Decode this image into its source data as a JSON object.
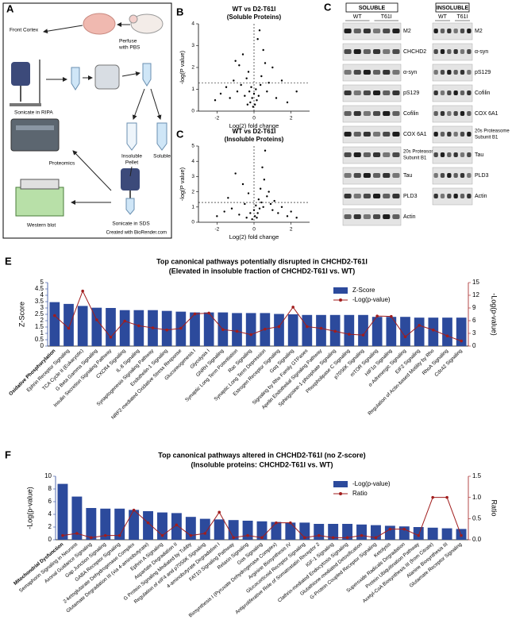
{
  "diagram": {
    "panel_label": "A",
    "front_cortex": "Front Cortex",
    "perfuse": [
      "Perfuse",
      "with PBS"
    ],
    "sonicate_ripa": "Sonicate in RIPA",
    "insoluble": [
      "Insoluble",
      "Pellet"
    ],
    "soluble": "Soluble",
    "proteomics": "Proteomics",
    "western": "Western blot",
    "sonicate_sds": "Sonicate in SDS",
    "credit": "Created with BioRender.com"
  },
  "blots": {
    "panel_label": "C",
    "soluble": {
      "title": "SOLUBLE",
      "groups": [
        "WT",
        "T61I"
      ],
      "proteins": [
        "M2",
        "CHCHD2",
        "α-syn",
        "pS129",
        "Cofilin",
        "COX 6A1",
        [
          "20s Proteasome",
          "Subunit B1"
        ],
        "Tau",
        "PLD3",
        "Actin"
      ]
    },
    "insoluble": {
      "title": "INSOLUBLE",
      "groups": [
        "WT",
        "T61I"
      ],
      "proteins": [
        "M2",
        "α-syn",
        "pS129",
        "Cofilin",
        "COX 6A1",
        [
          "20s Proteasome",
          "Subunit B1"
        ],
        "Tau",
        "PLD3",
        "Actin"
      ]
    }
  },
  "chart_data": [
    {
      "type": "scatter",
      "panel_label": "B",
      "title": "WT vs D2-T61I",
      "subtitle": "(Soluble Proteins)",
      "x_label": "Log(2) fold change",
      "y_label": "-log(P value)",
      "xlim": [
        -3,
        3
      ],
      "xticks": [
        -2,
        0,
        2
      ],
      "ylim": [
        0,
        4
      ],
      "yticks": [
        0,
        1,
        2,
        3,
        4
      ],
      "reference_y": 1.3,
      "reference_x": 0,
      "color": "#000000",
      "x": [
        -2.1,
        -1.8,
        -1.5,
        -1.3,
        -1.1,
        -1.0,
        -0.9,
        -0.8,
        -0.7,
        -0.6,
        -0.5,
        -0.4,
        -0.35,
        -0.3,
        -0.25,
        -0.2,
        -0.15,
        -0.1,
        -0.05,
        0,
        0.05,
        0.1,
        0.15,
        0.2,
        0.25,
        0.3,
        0.35,
        0.4,
        0.5,
        0.6,
        0.7,
        0.8,
        1.0,
        1.2,
        1.5,
        1.8,
        2.3
      ],
      "values": [
        0.5,
        0.8,
        1.1,
        0.6,
        1.4,
        2.3,
        0.9,
        2.1,
        1.2,
        2.6,
        0.7,
        1.5,
        0.3,
        1.8,
        0.9,
        0.4,
        1.1,
        0.6,
        0.2,
        0.8,
        0.3,
        1.0,
        0.5,
        3.3,
        0.7,
        3.7,
        1.2,
        1.6,
        2.8,
        2.2,
        0.9,
        1.3,
        2.0,
        0.6,
        1.4,
        0.4,
        0.9
      ]
    },
    {
      "type": "scatter",
      "panel_label": "C",
      "title": "WT vs D2-T61I",
      "subtitle": "(Insoluble Proteins)",
      "x_label": "Log(2) fold change",
      "y_label": "-log(P value)",
      "xlim": [
        -3,
        3
      ],
      "xticks": [
        -2,
        0,
        2
      ],
      "ylim": [
        0,
        5
      ],
      "yticks": [
        0,
        1,
        2,
        3,
        4,
        5
      ],
      "reference_y": 1.3,
      "reference_x": 0,
      "color": "#000000",
      "x": [
        -2.0,
        -1.6,
        -1.4,
        -1.2,
        -1.0,
        -0.8,
        -0.6,
        -0.5,
        -0.4,
        -0.3,
        -0.2,
        -0.1,
        0,
        0.05,
        0.1,
        0.15,
        0.2,
        0.25,
        0.3,
        0.35,
        0.4,
        0.45,
        0.5,
        0.55,
        0.6,
        0.7,
        0.8,
        0.9,
        1.0,
        1.1,
        1.3,
        1.5,
        1.8,
        2.0,
        2.3
      ],
      "values": [
        0.4,
        0.7,
        1.6,
        0.9,
        3.2,
        0.5,
        2.5,
        1.2,
        0.3,
        1.9,
        0.6,
        0.2,
        0.8,
        0.4,
        1.1,
        0.3,
        0.6,
        1.5,
        0.9,
        2.2,
        1.3,
        3.6,
        1.0,
        2.8,
        4.7,
        1.7,
        2.0,
        1.2,
        0.8,
        1.4,
        0.6,
        1.0,
        0.4,
        0.7,
        0.3
      ]
    },
    {
      "type": "bar",
      "panel_label": "E",
      "title": "Top canonical pathways potentially disrupted in CHCHD2-T61I",
      "subtitle": "(Elevated in insoluble fraction of CHCHD2-T61I vs. WT)",
      "y_label": "Z-Score",
      "y2_label": "-Log(p-value)",
      "legend": "upper right",
      "categories": [
        "Oxidative Phosphorylation",
        "Ephrin Receptor Signaling",
        "TCA Cycle II (Eukaryotic)",
        "G Beta Gamma Signaling",
        "Insulin Secretion Signaling Pathway",
        "CXCR4 Signaling",
        "IL-8 Signaling",
        "Synaptogenesis Signaling Pathway",
        "Endothelin-1 Signaling",
        "NRF2-mediated Oxidative Stress Response",
        "Gluconeogenesis I",
        "Glycolysis I",
        "GNRH Signaling",
        "Synaptic Long Term Potentiation",
        "Rac Signaling",
        "Synaptic Long Term Depression",
        "Estrogen Receptor Signaling",
        "Gαq Signaling",
        "Signaling by Rho Family GTPases",
        "Apelin Endothelial Signaling Pathway",
        "Sphingosine-1-phosphate Signaling",
        "Phospholipase C Signaling",
        "p70S6K Signaling",
        "mTOR Signaling",
        "HIF1α Signaling",
        "α-Adrenergic Signaling",
        "EIF2 Signaling",
        "Regulation of Actin-based Motility by Rho",
        "RhoA Signaling",
        "Cdc42 Signaling"
      ],
      "ylim": [
        0,
        5
      ],
      "yticks": [
        0,
        0.5,
        1,
        1.5,
        2,
        2.5,
        3,
        3.5,
        4,
        4.5,
        5
      ],
      "y2lim": [
        0,
        15
      ],
      "y2ticks": [
        0,
        3,
        6,
        9,
        12,
        15
      ],
      "series": [
        {
          "name": "Z-Score",
          "color": "#2c4a9c",
          "values": [
            3.46,
            3.32,
            3.16,
            3.02,
            3.0,
            2.83,
            2.83,
            2.83,
            2.77,
            2.71,
            2.65,
            2.65,
            2.65,
            2.6,
            2.6,
            2.6,
            2.53,
            2.5,
            2.45,
            2.45,
            2.45,
            2.45,
            2.45,
            2.3,
            2.3,
            2.3,
            2.24,
            2.24,
            2.24,
            2.24
          ]
        },
        {
          "name": "-Log(p-value)",
          "color": "#a11d1d",
          "axis": "y2",
          "values": [
            7.2,
            4.2,
            13,
            6.2,
            2.1,
            5.9,
            4.8,
            4.3,
            3.8,
            4.2,
            7.6,
            7.8,
            3.9,
            3.5,
            2.7,
            4,
            4.6,
            9.2,
            4.6,
            4.2,
            3.5,
            2.8,
            2.6,
            7.1,
            7,
            2.2,
            4.9,
            3.8,
            2.4,
            1.2
          ]
        }
      ]
    },
    {
      "type": "bar",
      "panel_label": "F",
      "title": "Top canonical pathways altered in CHCHD2-T61I (no Z-score)",
      "subtitle": "(Insoluble proteins: CHCHD2-T61I vs. WT)",
      "y_label": "-Log(p-value)",
      "y2_label": "Ratio",
      "legend": "upper right",
      "categories": [
        "Mitochondrial Dysfunction",
        "Semaphorin Signaling in Neurons",
        "Axonal Guidance Signaling",
        "Gap Junction Signaling",
        "GABA Receptor Signaling",
        "2-ketoglutarate Dehydrogenase Complex",
        "Glutamate Degradation III (via 4-aminobutyrate)",
        "Ephrin A Signaling",
        "Aspartate Degradation II",
        "G Protein Signaling Mediated by Tubby",
        "Regulation of eIF4 and p70S6K Signaling",
        "4-aminobutyrate Degradation I",
        "FAT10 Signaling Pathway",
        "Relaxin Signaling",
        "Gαs Signaling",
        "Biosynthesis I (Pyruvate Dehydrogenase Complex)",
        "Arginine Biosynthesis IV",
        "Glucocorticoid Receptor Signaling",
        "Antiproliferative Role of Somatostatin Receptor 2",
        "IGF-1 Signaling",
        "Clathrin-mediated Endocytosis Signaling",
        "Glutathione-mediated Detoxification",
        "G-Protein Coupled Receptor Signaling",
        "Ketolysis",
        "Superoxide Radicals Degradation",
        "Protein Ubiquitination Pathway",
        "Acetyl-CoA Biosynthesis III (from Citrate)",
        "Alanine Biosynthesis III",
        "Glutamate Receptor Signaling"
      ],
      "ylim": [
        0,
        10
      ],
      "yticks": [
        0,
        2,
        4,
        6,
        8,
        10
      ],
      "y2lim": [
        0,
        1.5
      ],
      "y2ticks": [
        {
          "value": 0,
          "label": "0.0"
        },
        0.5,
        {
          "value": 1,
          "label": "1.0"
        },
        1.5
      ],
      "series": [
        {
          "name": "-Log(p-value)",
          "color": "#2c4a9c",
          "values": [
            8.8,
            6.8,
            5.0,
            4.9,
            4.9,
            4.7,
            4.5,
            4.3,
            4.2,
            3.6,
            3.3,
            3.2,
            3.1,
            3.0,
            2.9,
            2.8,
            2.7,
            2.7,
            2.5,
            2.5,
            2.5,
            2.4,
            2.3,
            2.2,
            2.1,
            2.0,
            1.9,
            1.8,
            1.7
          ]
        },
        {
          "name": "Ratio",
          "color": "#a11d1d",
          "axis": "y2",
          "values": [
            0.1,
            0.15,
            0.05,
            0.1,
            0.1,
            0.7,
            0.4,
            0.1,
            0.35,
            0.1,
            0.15,
            0.65,
            0.05,
            0.1,
            0.05,
            0.4,
            0.4,
            0.05,
            0.1,
            0.05,
            0.05,
            0.1,
            0.05,
            0.25,
            0.25,
            0.1,
            1.0,
            1.0,
            0.1
          ]
        }
      ]
    }
  ]
}
